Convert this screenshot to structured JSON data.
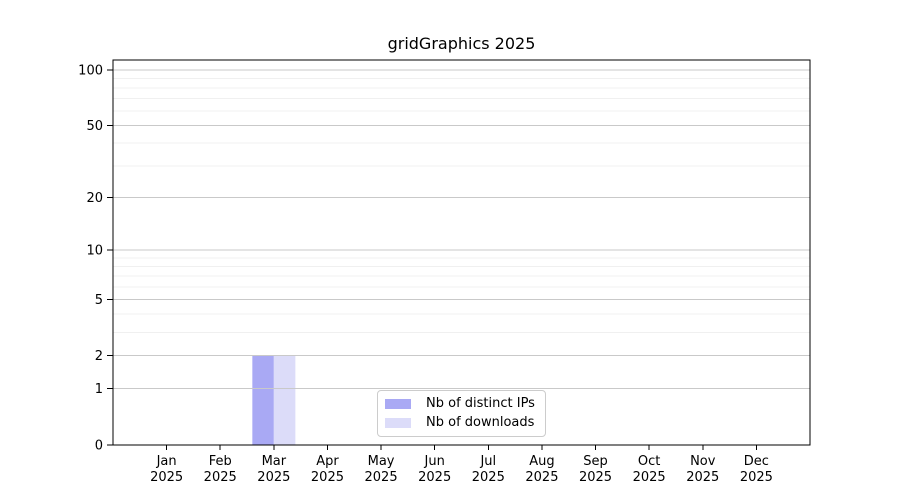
{
  "chart_data": {
    "type": "bar",
    "title": "gridGraphics 2025",
    "x_categories": [
      "Jan",
      "Feb",
      "Mar",
      "Apr",
      "May",
      "Jun",
      "Jul",
      "Aug",
      "Sep",
      "Oct",
      "Nov",
      "Dec"
    ],
    "x_year_label": "2025",
    "series": [
      {
        "name": "Nb of distinct IPs",
        "color": "#a9a9f4",
        "values": [
          0,
          0,
          2,
          0,
          0,
          0,
          0,
          0,
          0,
          0,
          0,
          0
        ]
      },
      {
        "name": "Nb of downloads",
        "color": "#dcdcf9",
        "values": [
          0,
          0,
          2,
          0,
          0,
          0,
          0,
          0,
          0,
          0,
          0,
          0
        ]
      }
    ],
    "y_scale": "log1p",
    "y_ticks": [
      0,
      1,
      2,
      5,
      10,
      20,
      50,
      100
    ],
    "y_minor_gridlines": [
      3,
      4,
      6,
      7,
      8,
      9,
      30,
      40,
      60,
      70,
      80,
      90
    ],
    "ylim": [
      0,
      113
    ],
    "grid": "on",
    "legend_position": "lower center",
    "colors": {
      "grid_major": "#c9c9c9",
      "grid_minor": "#f0f0f0",
      "axis": "#000000",
      "text": "#000000",
      "legend_border": "#cccccc",
      "background": "#ffffff"
    }
  }
}
